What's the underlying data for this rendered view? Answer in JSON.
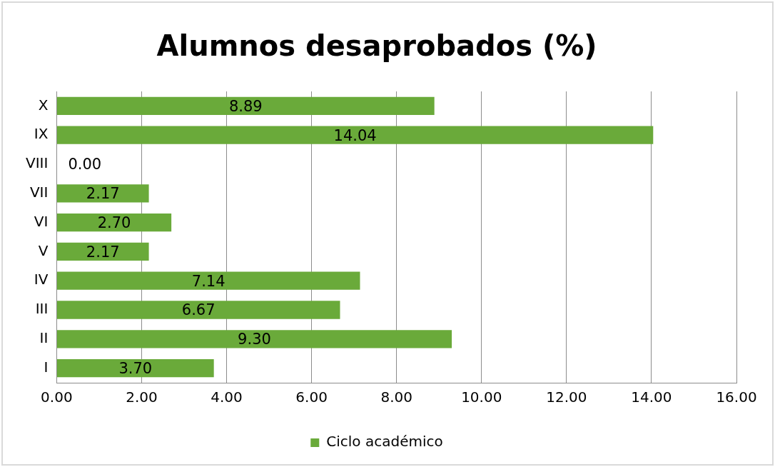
{
  "chart_data": {
    "type": "bar",
    "orientation": "horizontal",
    "title": "Alumnos desaprobados (%)",
    "categories": [
      "X",
      "IX",
      "VIII",
      "VII",
      "VI",
      "V",
      "IV",
      "III",
      "II",
      "I"
    ],
    "series": [
      {
        "name": "Ciclo académico",
        "color": "#6aaa3a",
        "values": [
          8.89,
          14.04,
          0.0,
          2.17,
          2.7,
          2.17,
          7.14,
          6.67,
          9.3,
          3.7
        ],
        "value_labels": [
          "8.89",
          "14.04",
          "0.00",
          "2.17",
          "2.70",
          "2.17",
          "7.14",
          "6.67",
          "9.30",
          "3.70"
        ]
      }
    ],
    "xlim": [
      0,
      16
    ],
    "xticks": [
      {
        "value": 0,
        "label": "0.00"
      },
      {
        "value": 2,
        "label": "2.00"
      },
      {
        "value": 4,
        "label": "4.00"
      },
      {
        "value": 6,
        "label": "6.00"
      },
      {
        "value": 8,
        "label": "8.00"
      },
      {
        "value": 10,
        "label": "10.00"
      },
      {
        "value": 12,
        "label": "12.00"
      },
      {
        "value": 14,
        "label": "14.00"
      },
      {
        "value": 16,
        "label": "16.00"
      }
    ],
    "grid": "x",
    "legend": "bottom"
  }
}
